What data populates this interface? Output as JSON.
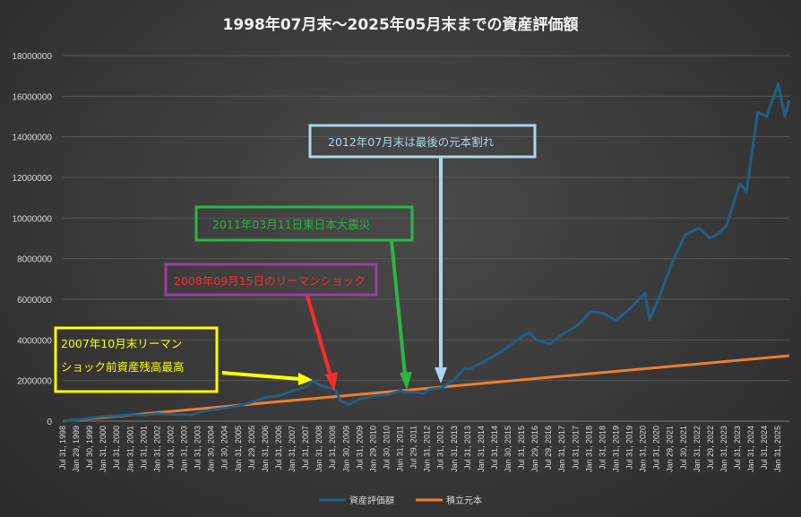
{
  "chart_data": {
    "type": "line",
    "title": "1998年07月末～2025年05月末までの資産評価額",
    "xlabel": "",
    "ylabel": "",
    "ylim": [
      0,
      18000000
    ],
    "yticks": [
      "0",
      "2000000",
      "4000000",
      "6000000",
      "8000000",
      "10000000",
      "12000000",
      "14000000",
      "16000000",
      "18000000"
    ],
    "xrange": [
      "1998-07-31",
      "2025-05-31"
    ],
    "xticks": [
      "Jul 31, 1998",
      "Jan 29, 1999",
      "Jul 30, 1999",
      "Jan 31, 2000",
      "Jul 31, 2000",
      "Jan 31, 2001",
      "Jul 31, 2001",
      "Jan 31, 2002",
      "Jul 31, 2002",
      "Jan 31, 2003",
      "Jul 31, 2003",
      "Jan 30, 2004",
      "Jul 30, 2004",
      "Jan 31, 2005",
      "Jul 29, 2005",
      "Jan 31, 2006",
      "Jul 31, 2006",
      "Jan 31, 2007",
      "Jul 31, 2007",
      "Jan 31, 2008",
      "Jul 31, 2008",
      "Jan 30, 2009",
      "Jul 31, 2009",
      "Jan 29, 2010",
      "Jul 30, 2010",
      "Jan 31, 2011",
      "Jul 29, 2011",
      "Jan 31, 2012",
      "Jul 31, 2012",
      "Jan 31, 2013",
      "Jul 31, 2013",
      "Jan 31, 2014",
      "Jul 31, 2014",
      "Jan 30, 2015",
      "Jul 31, 2015",
      "Jan 29, 2016",
      "Jul 29, 2016",
      "Jan 31, 2017",
      "Jul 31, 2017",
      "Jan 31, 2018",
      "Jul 31, 2018",
      "Jan 31, 2019",
      "Jul 31, 2019",
      "Jan 31, 2020",
      "Jul 31, 2020",
      "Jan 29, 2021",
      "Jul 30, 2021",
      "Jan 31, 2022",
      "Jul 29, 2022",
      "Jan 31, 2023",
      "Jul 31, 2023",
      "Jan 31, 2024",
      "Jul 31, 2024",
      "Jan 31, 2025"
    ],
    "grid": true,
    "legend_position": "bottom",
    "series": [
      {
        "name": "資産評価額",
        "color": "#1f5f86",
        "points": [
          [
            "1998-07-31",
            0
          ],
          [
            "1999-01-29",
            60000
          ],
          [
            "1999-07-30",
            150000
          ],
          [
            "2000-01-31",
            230000
          ],
          [
            "2000-07-31",
            270000
          ],
          [
            "2001-01-31",
            320000
          ],
          [
            "2001-07-31",
            300000
          ],
          [
            "2002-01-31",
            360000
          ],
          [
            "2002-07-31",
            330000
          ],
          [
            "2003-01-31",
            320000
          ],
          [
            "2003-04-30",
            300000
          ],
          [
            "2003-07-31",
            420000
          ],
          [
            "2004-01-30",
            560000
          ],
          [
            "2004-07-30",
            640000
          ],
          [
            "2005-01-31",
            760000
          ],
          [
            "2005-07-29",
            940000
          ],
          [
            "2006-01-31",
            1180000
          ],
          [
            "2006-07-31",
            1250000
          ],
          [
            "2007-01-31",
            1500000
          ],
          [
            "2007-07-31",
            1700000
          ],
          [
            "2007-10-31",
            1990000
          ],
          [
            "2008-01-31",
            1760000
          ],
          [
            "2008-07-31",
            1600000
          ],
          [
            "2008-09-15",
            1380000
          ],
          [
            "2008-10-31",
            1000000
          ],
          [
            "2009-02-27",
            820000
          ],
          [
            "2009-07-31",
            1100000
          ],
          [
            "2010-01-29",
            1250000
          ],
          [
            "2010-07-30",
            1300000
          ],
          [
            "2011-01-31",
            1500000
          ],
          [
            "2011-03-11",
            1420000
          ],
          [
            "2011-07-29",
            1420000
          ],
          [
            "2011-11-30",
            1360000
          ],
          [
            "2012-01-31",
            1550000
          ],
          [
            "2012-07-31",
            1650000
          ],
          [
            "2013-01-31",
            2100000
          ],
          [
            "2013-05-31",
            2600000
          ],
          [
            "2013-07-31",
            2550000
          ],
          [
            "2014-01-31",
            2900000
          ],
          [
            "2014-07-31",
            3250000
          ],
          [
            "2015-01-30",
            3700000
          ],
          [
            "2015-07-31",
            4200000
          ],
          [
            "2015-10-30",
            4350000
          ],
          [
            "2016-01-29",
            4000000
          ],
          [
            "2016-07-29",
            3800000
          ],
          [
            "2016-12-30",
            4250000
          ],
          [
            "2017-07-31",
            4700000
          ],
          [
            "2018-01-31",
            5400000
          ],
          [
            "2018-07-31",
            5300000
          ],
          [
            "2018-12-28",
            4950000
          ],
          [
            "2019-07-31",
            5600000
          ],
          [
            "2020-01-31",
            6300000
          ],
          [
            "2020-03-31",
            5000000
          ],
          [
            "2020-07-31",
            6000000
          ],
          [
            "2021-01-29",
            7800000
          ],
          [
            "2021-07-30",
            9200000
          ],
          [
            "2022-01-31",
            9500000
          ],
          [
            "2022-06-30",
            9000000
          ],
          [
            "2022-09-30",
            9200000
          ],
          [
            "2023-01-31",
            9600000
          ],
          [
            "2023-07-31",
            11700000
          ],
          [
            "2023-10-31",
            11300000
          ],
          [
            "2024-03-29",
            15200000
          ],
          [
            "2024-07-31",
            15000000
          ],
          [
            "2024-12-31",
            16600000
          ],
          [
            "2025-03-31",
            15000000
          ],
          [
            "2025-05-30",
            15800000
          ]
        ]
      },
      {
        "name": "積立元本",
        "color": "#ed7d31",
        "points": [
          [
            "1998-07-31",
            0
          ],
          [
            "2025-05-30",
            3220000
          ]
        ]
      }
    ]
  },
  "annotations": [
    {
      "label": "2007年10月末リーマン",
      "label2": "ショック前資産残高最高",
      "color": "#ffff00"
    },
    {
      "label": "2008年09月15日のリーマンショック",
      "color": "#ff2a2a",
      "border": "#9e3ba5"
    },
    {
      "label": "2011年03月11日東日本大震災",
      "color": "#2bb543"
    },
    {
      "label": "2012年07月末は最後の元本割れ",
      "color": "#a9d6ee"
    }
  ]
}
